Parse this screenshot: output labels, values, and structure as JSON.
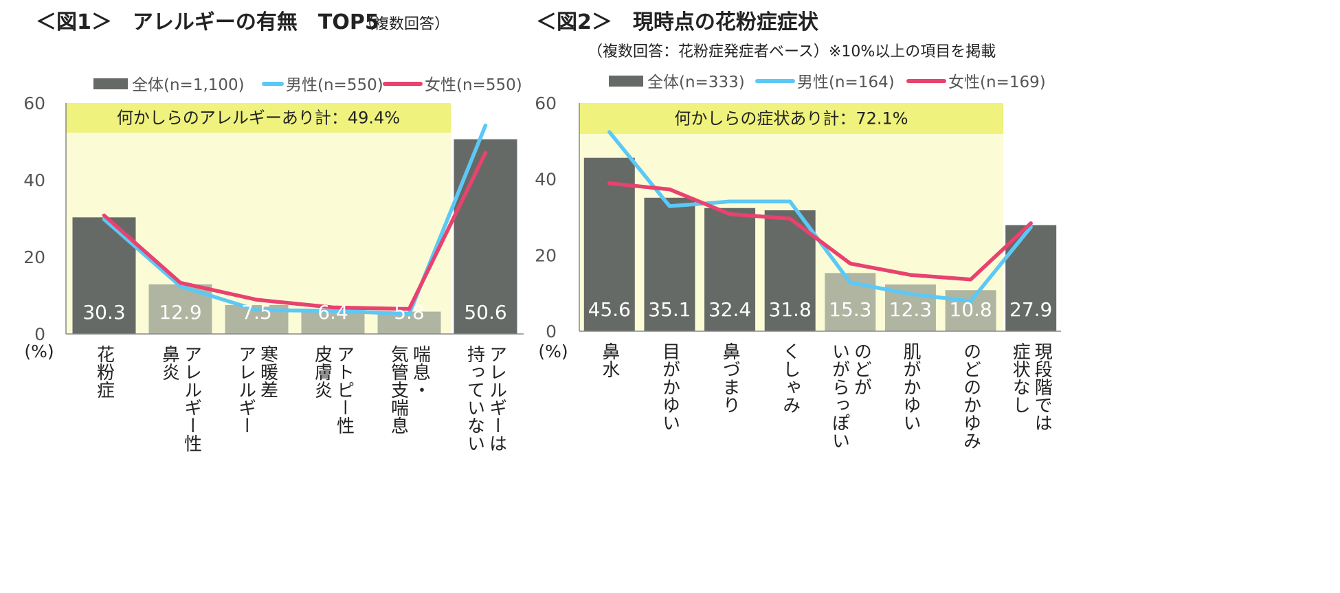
{
  "chart_data": [
    {
      "type": "bar",
      "title": "＜図1＞　アレルギーの有無　TOP5",
      "subtitle": "（複数回答）",
      "banner": "何かしらのアレルギーあり計：49.4%",
      "ylabel": "(%)",
      "ylim": [
        0,
        60
      ],
      "yticks": [
        0,
        20,
        40,
        60
      ],
      "categories": [
        "花粉症",
        "アレルギー性鼻炎",
        "寒暖差アレルギー",
        "アトピー性皮膚炎",
        "喘息・気管支喘息",
        "アレルギーは持っていない"
      ],
      "category_lines": [
        [
          "花粉症"
        ],
        [
          "アレルギー性",
          "鼻炎"
        ],
        [
          "寒暖差",
          "アレルギー"
        ],
        [
          "アトピー性",
          "皮膚炎"
        ],
        [
          "喘息・",
          "気管支喘息"
        ],
        [
          "アレルギーは",
          "持っていない"
        ]
      ],
      "legend_placement": "top",
      "series": [
        {
          "name": "全体(n=1,100)",
          "kind": "bar",
          "values": [
            30.3,
            12.9,
            7.5,
            6.4,
            5.8,
            50.6
          ],
          "labels": [
            "30.3",
            "12.9",
            "7.5",
            "6.4",
            "5.8",
            "50.6"
          ]
        },
        {
          "name": "男性(n=550)",
          "kind": "line",
          "values": [
            29.8,
            12.4,
            6.2,
            6.0,
            5.2,
            54.2
          ]
        },
        {
          "name": "女性(n=550)",
          "kind": "line",
          "values": [
            30.8,
            13.3,
            8.9,
            6.9,
            6.5,
            47.1
          ]
        }
      ],
      "bar_colors": [
        "#666a66",
        "#afb5a1",
        "#afb5a1",
        "#afb5a1",
        "#afb5a1",
        "#666a66"
      ]
    },
    {
      "type": "bar",
      "title": "＜図2＞　現時点の花粉症症状",
      "subtitle": "（複数回答：花粉症発症者ベース）※10%以上の項目を掲載",
      "banner": "何かしらの症状あり計：72.1%",
      "ylabel": "(%)",
      "ylim": [
        0,
        60
      ],
      "yticks": [
        0,
        20,
        40,
        60
      ],
      "categories": [
        "鼻水",
        "目がかゆい",
        "鼻づまり",
        "くしゃみ",
        "のどがいがらっぽい",
        "肌がかゆい",
        "のどのかゆみ",
        "現段階では症状なし"
      ],
      "category_lines": [
        [
          "鼻水"
        ],
        [
          "目がかゆい"
        ],
        [
          "鼻づまり"
        ],
        [
          "くしゃみ"
        ],
        [
          "のどが",
          "いがらっぽい"
        ],
        [
          "肌がかゆい"
        ],
        [
          "のどのかゆみ"
        ],
        [
          "現段階では",
          "症状なし"
        ]
      ],
      "legend_placement": "top",
      "series": [
        {
          "name": "全体(n=333)",
          "kind": "bar",
          "values": [
            45.6,
            35.1,
            32.4,
            31.8,
            15.3,
            12.3,
            10.8,
            27.9
          ],
          "labels": [
            "45.6",
            "35.1",
            "32.4",
            "31.8",
            "15.3",
            "12.3",
            "10.8",
            "27.9"
          ]
        },
        {
          "name": "男性(n=164)",
          "kind": "line",
          "values": [
            52.4,
            32.9,
            34.1,
            34.1,
            12.8,
            9.8,
            7.9,
            27.4
          ]
        },
        {
          "name": "女性(n=169)",
          "kind": "line",
          "values": [
            38.9,
            37.3,
            30.8,
            29.6,
            17.8,
            14.8,
            13.6,
            28.4
          ]
        }
      ],
      "bar_colors": [
        "#666a66",
        "#666a66",
        "#666a66",
        "#666a66",
        "#afb5a1",
        "#afb5a1",
        "#afb5a1",
        "#666a66"
      ]
    }
  ],
  "colors": {
    "men_line": "#5cc8f5",
    "women_line": "#e8426f",
    "plot_bg": "#fbfcd6",
    "banner_bg": "#eff27d",
    "text": "#222222",
    "axis_text": "#555555"
  }
}
